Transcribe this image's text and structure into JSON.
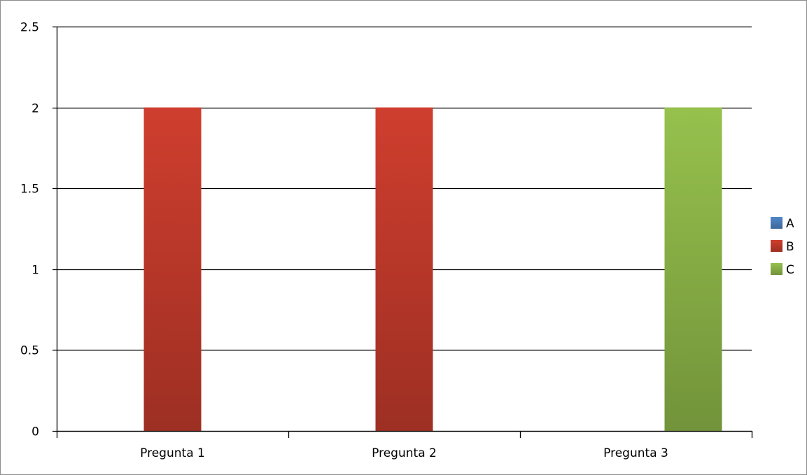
{
  "chart_data": {
    "type": "bar",
    "title": "",
    "xlabel": "",
    "ylabel": "",
    "categories": [
      "Pregunta 1",
      "Pregunta 2",
      "Pregunta 3"
    ],
    "series": [
      {
        "name": "A",
        "values": [
          0,
          0,
          0
        ],
        "color": "#4a7ebb"
      },
      {
        "name": "B",
        "values": [
          2,
          2,
          0
        ],
        "color": "#c0392b"
      },
      {
        "name": "C",
        "values": [
          0,
          0,
          2
        ],
        "color": "#8bb347"
      }
    ],
    "ylim": [
      0,
      2.5
    ],
    "yticks": [
      "0",
      "0.5",
      "1",
      "1.5",
      "2",
      "2.5"
    ],
    "grid": true,
    "legend_position": "right"
  }
}
